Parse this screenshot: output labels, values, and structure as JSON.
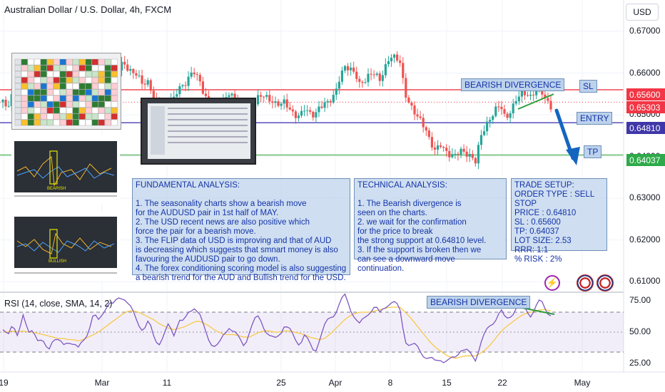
{
  "header": {
    "title": "Australian Dollar / U.S. Dollar, 4h, FXCM",
    "currency": "USD"
  },
  "colors": {
    "up": "#26a69a",
    "down": "#ef5350",
    "sl_line": "#f23645",
    "support_line": "#4a3fb5",
    "tp_line": "#4caf50",
    "note_bg": "#bcd2ec",
    "note_text": "#1533a8",
    "rsi_line": "#7e57c2",
    "rsi_sma": "#f7c948",
    "arrow": "#1565c0"
  },
  "price_labels": [
    {
      "text": "0.65600",
      "color": "#f23645"
    },
    {
      "text": "0.65303",
      "color": "#f23645"
    },
    {
      "text": "0.64810",
      "color": "#3f36a8"
    },
    {
      "text": "0.64037",
      "color": "#2eaa4a"
    }
  ],
  "tags": {
    "bearish_top": "BEARISH DIVERGENCE",
    "sl": "SL",
    "entry": "ENTRY",
    "tp": "TP",
    "bearish_rsi": "BEARISH DIVERGENCE"
  },
  "notes": {
    "fundamental": "FUNDAMENTAL ANALYSIS:\n\n1.  The seasonality charts show a bearish move\nfor the AUDUSD pair in 1st half of MAY.\n2. The USD recent news are also positive which\nforce the pair for a bearish move.\n3. The FLIP data of USD is improving and that of AUD\nis decreasing which suggests that smnart money is also\nfavouring the AUDUSD pair to go down.\n4. The forex conditioning scoring model is also suggesting\na bearish trend for the AUD and Bullish trend for the USD.",
    "technical": "TECHNICAL ANALYSIS:\n\n1. The Bearish divergence is\nseen on the charts.\n2. we wait for the confirmation\n for the price to break\nthe strong support at 0.64810 level.\n3. If the support is broken then we\ncan see a downward move continuation.",
    "setup": "TRADE SETUP:\nORDER TYPE : SELL STOP\nPRICE : 0.64810\nSL : 0.65600\nTP: 0.64037\nLOT SIZE: 2.53\nRRR: 1:1\n% RISK : 2%"
  },
  "thumb_labels": {
    "bearish": "BEARISH",
    "bullish": "BULLISH"
  },
  "rsi_title": "RSI (14, close, SMA, 14, 2)",
  "chart_data": [
    {
      "type": "candlestick",
      "title": "Australian Dollar / U.S. Dollar, 4h, FXCM",
      "ylabel": "USD",
      "ylim": [
        0.6075,
        0.6775
      ],
      "y_ticks": [
        "0.67000",
        "0.66000",
        "0.65000",
        "0.64000",
        "0.63000",
        "0.62000",
        "0.61000"
      ],
      "y_tick_values": [
        0.67,
        0.66,
        0.65,
        0.64,
        0.63,
        0.62,
        0.61
      ],
      "x_ticks": [
        "19",
        "Mar",
        "11",
        "25",
        "Apr",
        "8",
        "15",
        "22",
        "May"
      ],
      "levels": [
        {
          "name": "SL",
          "value": 0.656
        },
        {
          "name": "ENTRY",
          "value": 0.6481
        },
        {
          "name": "TP",
          "value": 0.64037
        }
      ],
      "close_path": [
        0.653,
        0.651,
        0.654,
        0.6525,
        0.6555,
        0.654,
        0.656,
        0.653,
        0.6515,
        0.65,
        0.652,
        0.6505,
        0.6495,
        0.651,
        0.65,
        0.649,
        0.65,
        0.652,
        0.656,
        0.655,
        0.658,
        0.66,
        0.659,
        0.662,
        0.664,
        0.661,
        0.66,
        0.658,
        0.656,
        0.657,
        0.654,
        0.652,
        0.653,
        0.655,
        0.654,
        0.656,
        0.6555,
        0.658,
        0.66,
        0.659,
        0.656,
        0.654,
        0.652,
        0.651,
        0.6525,
        0.654,
        0.653,
        0.6515,
        0.65,
        0.652,
        0.6535,
        0.655,
        0.654,
        0.6525,
        0.6515,
        0.652,
        0.6535,
        0.6525,
        0.651,
        0.6505,
        0.6515,
        0.6495,
        0.6485,
        0.651,
        0.6525,
        0.654,
        0.656,
        0.66,
        0.662,
        0.6605,
        0.659,
        0.656,
        0.6575,
        0.66,
        0.661,
        0.6595,
        0.662,
        0.664,
        0.663,
        0.6615,
        0.654,
        0.652,
        0.651,
        0.65,
        0.648,
        0.644,
        0.641,
        0.642,
        0.64,
        0.6395,
        0.6405,
        0.6425,
        0.642,
        0.641,
        0.639,
        0.644,
        0.646,
        0.648,
        0.651,
        0.653,
        0.65,
        0.652,
        0.654,
        0.655,
        0.654,
        0.653,
        0.655,
        0.656,
        0.6545,
        0.653
      ],
      "annotations": [
        "BEARISH DIVERGENCE",
        "SL",
        "ENTRY",
        "TP"
      ]
    },
    {
      "type": "line",
      "title": "RSI (14, close, SMA, 14, 2)",
      "ylim": [
        18,
        82
      ],
      "y_ticks": [
        "75.00",
        "50.00",
        "25.00"
      ],
      "y_tick_values": [
        75,
        50,
        25
      ],
      "band": [
        30,
        70
      ],
      "series": [
        {
          "name": "RSI",
          "values": [
            52,
            44,
            58,
            49,
            62,
            48,
            55,
            43,
            40,
            36,
            47,
            42,
            38,
            45,
            41,
            35,
            44,
            52,
            63,
            58,
            68,
            74,
            70,
            78,
            80,
            71,
            64,
            58,
            52,
            57,
            47,
            42,
            46,
            55,
            49,
            61,
            56,
            66,
            72,
            65,
            52,
            45,
            40,
            38,
            48,
            56,
            50,
            43,
            40,
            51,
            58,
            62,
            55,
            47,
            42,
            49,
            57,
            51,
            44,
            42,
            48,
            39,
            34,
            46,
            54,
            60,
            66,
            74,
            78,
            70,
            64,
            55,
            60,
            68,
            72,
            63,
            70,
            76,
            73,
            66,
            45,
            40,
            38,
            35,
            32,
            28,
            25,
            30,
            27,
            26,
            30,
            38,
            35,
            31,
            29,
            42,
            48,
            55,
            62,
            68,
            58,
            64,
            70,
            72,
            68,
            65,
            70,
            74,
            69,
            65
          ]
        },
        {
          "name": "SMA",
          "values": [
            50,
            50,
            51,
            50,
            51,
            50,
            50,
            49,
            48,
            47,
            46,
            45,
            45,
            44,
            44,
            43,
            44,
            46,
            48,
            50,
            53,
            56,
            59,
            62,
            65,
            67,
            67,
            66,
            64,
            62,
            60,
            57,
            55,
            53,
            52,
            53,
            54,
            56,
            58,
            59,
            57,
            55,
            52,
            50,
            48,
            48,
            48,
            47,
            46,
            46,
            48,
            50,
            51,
            51,
            50,
            50,
            51,
            51,
            50,
            49,
            48,
            46,
            45,
            44,
            45,
            48,
            52,
            56,
            60,
            63,
            65,
            66,
            66,
            66,
            67,
            68,
            69,
            70,
            70,
            70,
            66,
            62,
            57,
            52,
            47,
            42,
            38,
            35,
            32,
            30,
            29,
            30,
            31,
            31,
            31,
            33,
            36,
            40,
            45,
            50,
            54,
            57,
            60,
            63,
            65,
            66,
            67,
            68,
            68,
            67
          ]
        }
      ],
      "annotations": [
        "BEARISH DIVERGENCE"
      ]
    }
  ]
}
